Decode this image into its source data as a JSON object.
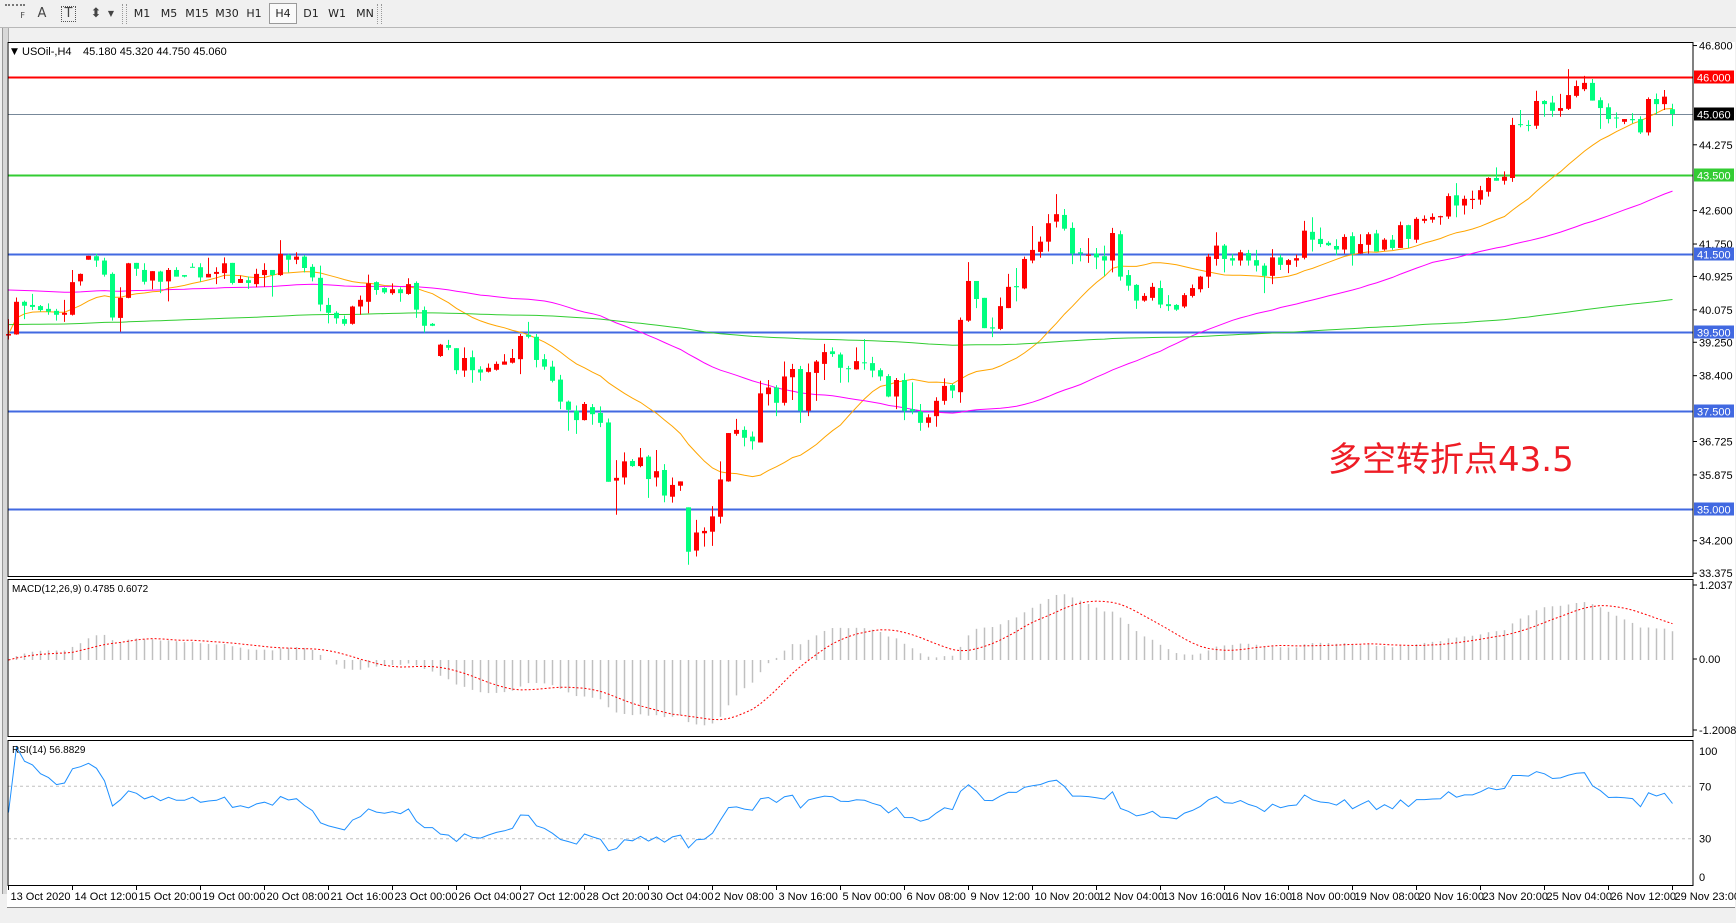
{
  "toolbar": {
    "tools": [
      {
        "name": "grid-properties-icon",
        "glyph": "F"
      },
      {
        "name": "text-tool-icon",
        "glyph": "A"
      },
      {
        "name": "text-label-tool-icon",
        "glyph": "T"
      },
      {
        "name": "arrows-tool-icon",
        "glyph": "⬍"
      }
    ],
    "timeframes": [
      "M1",
      "M5",
      "M15",
      "M30",
      "H1",
      "H4",
      "D1",
      "W1",
      "MN"
    ],
    "active_timeframe": "H4"
  },
  "header": {
    "symbol": "USOil-,H4",
    "ohlc": "45.180 45.320 44.750 45.060"
  },
  "price_axis": {
    "ticks": [
      "46.800",
      "44.275",
      "42.600",
      "41.750",
      "40.925",
      "40.075",
      "39.250",
      "38.400",
      "36.725",
      "35.875",
      "34.200",
      "33.375"
    ]
  },
  "levels": [
    {
      "label": "46.000",
      "price": 46.0,
      "color": "#ff0000",
      "kind": "resistance"
    },
    {
      "label": "45.060",
      "price": 45.06,
      "color": "#778899",
      "kind": "bid",
      "tag_color": "#000000"
    },
    {
      "label": "43.500",
      "price": 43.5,
      "color": "#33cc33",
      "kind": "pivot"
    },
    {
      "label": "41.500",
      "price": 41.5,
      "color": "#4169e1",
      "kind": "support"
    },
    {
      "label": "39.500",
      "price": 39.5,
      "color": "#4169e1",
      "kind": "support"
    },
    {
      "label": "37.500",
      "price": 37.5,
      "color": "#4169e1",
      "kind": "support"
    },
    {
      "label": "35.000",
      "price": 35.0,
      "color": "#4169e1",
      "kind": "support"
    }
  ],
  "annotation": {
    "text": "多空转折点43.5",
    "color": "#ee1c25"
  },
  "time_axis": [
    "13 Oct 2020",
    "14 Oct 12:00",
    "15 Oct 20:00",
    "19 Oct 00:00",
    "20 Oct 08:00",
    "21 Oct 16:00",
    "23 Oct 00:00",
    "26 Oct 04:00",
    "27 Oct 12:00",
    "28 Oct 20:00",
    "30 Oct 04:00",
    "2 Nov 08:00",
    "3 Nov 16:00",
    "5 Nov 00:00",
    "6 Nov 08:00",
    "9 Nov 12:00",
    "10 Nov 20:00",
    "12 Nov 04:00",
    "13 Nov 16:00",
    "16 Nov 16:00",
    "18 Nov 00:00",
    "19 Nov 08:00",
    "20 Nov 16:00",
    "23 Nov 20:00",
    "25 Nov 04:00",
    "26 Nov 12:00",
    "29 Nov 23:00"
  ],
  "macd": {
    "label": "MACD(12,26,9) 0.4785 0.6072",
    "axis": [
      "1.2037",
      "0.00",
      "-1.2008"
    ],
    "histogram_color": "#c0c0c0",
    "signal_color": "#ff0000"
  },
  "rsi": {
    "label": "RSI(14) 56.8829",
    "axis": [
      "100",
      "70",
      "30",
      "0"
    ],
    "levels": [
      70,
      30
    ],
    "line_color": "#1e90ff"
  },
  "colors": {
    "bull": "#ff0000",
    "bear": "#00ff7f",
    "ma_fast": "#ffa500",
    "ma_mid": "#ff00ff",
    "ma_slow": "#32cd32"
  },
  "chart_data": {
    "type": "candlestick",
    "symbol": "USOil-",
    "timeframe": "H4",
    "ylim": [
      33.375,
      46.8
    ],
    "candle_format": [
      "open",
      "high",
      "low",
      "close"
    ],
    "candles": [
      [
        39.42,
        39.84,
        39.32,
        39.46
      ],
      [
        39.45,
        40.39,
        39.44,
        40.28
      ],
      [
        40.28,
        40.31,
        39.84,
        40.18
      ],
      [
        40.2,
        40.48,
        40.07,
        40.15
      ],
      [
        40.17,
        40.2,
        40.03,
        40.07
      ],
      [
        40.1,
        40.24,
        39.95,
        40.03
      ],
      [
        40.05,
        40.1,
        39.8,
        39.95
      ],
      [
        39.95,
        40.33,
        39.77,
        40.0
      ],
      [
        39.95,
        41.09,
        39.93,
        40.78
      ],
      [
        40.8,
        41.0,
        40.69,
        40.99
      ],
      [
        41.35,
        41.45,
        41.35,
        41.45
      ],
      [
        41.44,
        41.5,
        41.17,
        41.33
      ],
      [
        41.33,
        41.4,
        40.92,
        40.97
      ],
      [
        40.99,
        41.03,
        39.8,
        39.88
      ],
      [
        39.87,
        40.65,
        39.52,
        40.38
      ],
      [
        40.38,
        41.27,
        40.37,
        41.26
      ],
      [
        41.27,
        41.27,
        40.94,
        41.12
      ],
      [
        41.09,
        41.26,
        40.72,
        40.79
      ],
      [
        40.82,
        41.06,
        40.6,
        41.06
      ],
      [
        41.05,
        41.07,
        40.5,
        40.79
      ],
      [
        40.8,
        41.14,
        40.29,
        41.09
      ],
      [
        41.09,
        41.16,
        40.92,
        40.92
      ],
      [
        40.96,
        40.96,
        40.9,
        40.92
      ],
      [
        41.17,
        41.26,
        41.16,
        41.16
      ],
      [
        41.16,
        41.26,
        40.79,
        40.9
      ],
      [
        40.9,
        41.4,
        40.9,
        40.99
      ],
      [
        40.99,
        41.16,
        40.73,
        41.04
      ],
      [
        41.01,
        41.41,
        40.86,
        41.26
      ],
      [
        41.27,
        41.27,
        40.72,
        40.76
      ],
      [
        40.76,
        40.95,
        40.76,
        40.86
      ],
      [
        40.83,
        40.92,
        40.61,
        40.76
      ],
      [
        40.73,
        41.12,
        40.65,
        40.99
      ],
      [
        40.96,
        41.26,
        40.66,
        41.09
      ],
      [
        41.09,
        41.09,
        40.41,
        40.96
      ],
      [
        40.96,
        41.85,
        40.94,
        41.5
      ],
      [
        41.47,
        41.5,
        41.03,
        41.35
      ],
      [
        41.35,
        41.54,
        41.24,
        41.43
      ],
      [
        41.43,
        41.47,
        41.03,
        41.14
      ],
      [
        41.17,
        41.24,
        40.8,
        40.9
      ],
      [
        40.89,
        41.2,
        40.04,
        40.21
      ],
      [
        40.2,
        40.38,
        39.73,
        40.0
      ],
      [
        40.0,
        40.04,
        39.72,
        39.86
      ],
      [
        39.84,
        39.93,
        39.67,
        39.72
      ],
      [
        39.72,
        40.18,
        39.7,
        40.16
      ],
      [
        40.16,
        40.44,
        39.95,
        40.33
      ],
      [
        40.28,
        40.97,
        39.99,
        40.75
      ],
      [
        40.78,
        40.8,
        40.46,
        40.58
      ],
      [
        40.63,
        40.65,
        40.48,
        40.52
      ],
      [
        40.5,
        40.75,
        40.46,
        40.6
      ],
      [
        40.6,
        40.65,
        40.28,
        40.5
      ],
      [
        40.48,
        40.88,
        40.46,
        40.73
      ],
      [
        40.76,
        40.8,
        39.87,
        40.08
      ],
      [
        40.07,
        40.16,
        39.5,
        39.67
      ],
      [
        39.72,
        39.74,
        39.66,
        39.67
      ],
      [
        38.9,
        39.21,
        38.88,
        39.19
      ],
      [
        39.18,
        39.31,
        39.05,
        39.11
      ],
      [
        39.1,
        39.1,
        38.44,
        38.54
      ],
      [
        38.53,
        39.12,
        38.37,
        38.85
      ],
      [
        38.87,
        39.04,
        38.22,
        38.54
      ],
      [
        38.56,
        38.64,
        38.27,
        38.48
      ],
      [
        38.5,
        38.71,
        38.48,
        38.6
      ],
      [
        38.55,
        38.76,
        38.53,
        38.7
      ],
      [
        38.68,
        38.95,
        38.68,
        38.76
      ],
      [
        38.73,
        39.08,
        38.71,
        38.85
      ],
      [
        38.82,
        39.46,
        38.44,
        39.41
      ],
      [
        39.44,
        39.77,
        39.35,
        39.39
      ],
      [
        39.39,
        39.46,
        38.61,
        38.8
      ],
      [
        38.82,
        38.95,
        38.55,
        38.63
      ],
      [
        38.63,
        38.78,
        38.23,
        38.27
      ],
      [
        38.3,
        38.42,
        37.55,
        37.74
      ],
      [
        37.74,
        37.77,
        37.0,
        37.53
      ],
      [
        37.51,
        37.64,
        36.92,
        37.27
      ],
      [
        37.27,
        37.73,
        37.26,
        37.68
      ],
      [
        37.6,
        37.68,
        37.15,
        37.42
      ],
      [
        37.45,
        37.62,
        37.09,
        37.2
      ],
      [
        37.21,
        37.31,
        35.7,
        35.7
      ],
      [
        35.73,
        36.25,
        34.86,
        35.8
      ],
      [
        35.81,
        36.45,
        35.63,
        36.22
      ],
      [
        36.23,
        36.28,
        36.08,
        36.1
      ],
      [
        36.1,
        36.56,
        36.07,
        36.32
      ],
      [
        36.34,
        36.38,
        35.29,
        35.77
      ],
      [
        35.81,
        36.51,
        35.58,
        35.97
      ],
      [
        36.0,
        36.15,
        35.18,
        35.35
      ],
      [
        35.32,
        35.81,
        35.17,
        35.62
      ],
      [
        35.6,
        35.71,
        35.47,
        35.71
      ],
      [
        35.05,
        35.05,
        33.59,
        33.92
      ],
      [
        33.95,
        34.73,
        33.8,
        34.41
      ],
      [
        34.39,
        34.54,
        34.05,
        34.45
      ],
      [
        34.43,
        35.08,
        34.07,
        34.82
      ],
      [
        34.81,
        36.22,
        34.64,
        35.76
      ],
      [
        35.71,
        36.94,
        35.7,
        36.94
      ],
      [
        36.92,
        37.3,
        36.87,
        37.02
      ],
      [
        37.02,
        37.11,
        36.6,
        36.82
      ],
      [
        36.85,
        36.98,
        36.52,
        36.73
      ],
      [
        36.7,
        38.27,
        36.7,
        37.95
      ],
      [
        37.93,
        38.29,
        37.64,
        38.1
      ],
      [
        38.1,
        38.16,
        37.37,
        37.71
      ],
      [
        37.71,
        38.76,
        37.64,
        38.38
      ],
      [
        38.36,
        38.7,
        37.78,
        38.57
      ],
      [
        38.57,
        38.65,
        37.2,
        37.51
      ],
      [
        37.51,
        38.71,
        37.37,
        38.49
      ],
      [
        38.47,
        38.8,
        37.76,
        38.76
      ],
      [
        38.7,
        39.21,
        38.29,
        39.0
      ],
      [
        39.02,
        39.12,
        38.88,
        38.95
      ],
      [
        38.94,
        38.99,
        38.22,
        38.6
      ],
      [
        38.59,
        38.65,
        38.23,
        38.58
      ],
      [
        38.56,
        39.12,
        38.55,
        38.77
      ],
      [
        38.74,
        39.33,
        38.55,
        38.73
      ],
      [
        38.72,
        38.88,
        38.36,
        38.53
      ],
      [
        38.54,
        38.59,
        38.27,
        38.38
      ],
      [
        38.39,
        38.44,
        37.85,
        37.87
      ],
      [
        37.87,
        38.34,
        37.55,
        38.29
      ],
      [
        38.29,
        38.46,
        37.27,
        37.51
      ],
      [
        37.55,
        38.23,
        37.42,
        37.5
      ],
      [
        37.49,
        37.68,
        37.0,
        37.2
      ],
      [
        37.2,
        37.42,
        37.08,
        37.34
      ],
      [
        37.37,
        37.85,
        37.1,
        37.76
      ],
      [
        37.76,
        38.33,
        37.66,
        38.14
      ],
      [
        38.16,
        38.19,
        37.83,
        38.02
      ],
      [
        37.98,
        39.88,
        37.71,
        39.82
      ],
      [
        39.8,
        41.29,
        39.77,
        40.81
      ],
      [
        40.81,
        40.81,
        40.12,
        40.35
      ],
      [
        40.38,
        40.38,
        39.61,
        39.61
      ],
      [
        39.63,
        39.88,
        39.38,
        39.6
      ],
      [
        39.59,
        40.39,
        39.56,
        40.17
      ],
      [
        40.12,
        40.99,
        40.12,
        40.66
      ],
      [
        40.68,
        41.14,
        40.29,
        40.65
      ],
      [
        40.62,
        41.43,
        40.6,
        41.37
      ],
      [
        41.33,
        42.21,
        41.26,
        41.6
      ],
      [
        41.55,
        41.94,
        41.4,
        41.81
      ],
      [
        41.81,
        42.51,
        41.56,
        42.28
      ],
      [
        42.32,
        43.02,
        42.17,
        42.51
      ],
      [
        42.49,
        42.64,
        42.09,
        42.14
      ],
      [
        42.16,
        42.3,
        41.24,
        41.51
      ],
      [
        41.54,
        41.65,
        41.31,
        41.51
      ],
      [
        41.45,
        41.9,
        41.27,
        41.48
      ],
      [
        41.51,
        41.65,
        41.11,
        41.41
      ],
      [
        41.44,
        41.71,
        40.94,
        41.33
      ],
      [
        41.33,
        42.16,
        41.03,
        42.03
      ],
      [
        42.0,
        42.09,
        40.82,
        40.92
      ],
      [
        40.96,
        41.09,
        40.56,
        40.69
      ],
      [
        40.71,
        40.73,
        40.1,
        40.31
      ],
      [
        40.31,
        40.5,
        40.28,
        40.43
      ],
      [
        40.38,
        40.76,
        40.31,
        40.66
      ],
      [
        40.63,
        40.82,
        40.12,
        40.21
      ],
      [
        40.22,
        40.45,
        40.05,
        40.17
      ],
      [
        40.2,
        40.22,
        40.05,
        40.08
      ],
      [
        40.16,
        40.5,
        40.12,
        40.45
      ],
      [
        40.43,
        40.72,
        40.39,
        40.63
      ],
      [
        40.6,
        40.94,
        40.52,
        40.92
      ],
      [
        40.92,
        41.5,
        40.63,
        41.43
      ],
      [
        41.37,
        42.05,
        41.2,
        41.71
      ],
      [
        41.71,
        41.75,
        41.03,
        41.37
      ],
      [
        41.39,
        41.5,
        41.2,
        41.33
      ],
      [
        41.33,
        41.6,
        41.2,
        41.54
      ],
      [
        41.52,
        41.6,
        41.2,
        41.33
      ],
      [
        41.34,
        41.6,
        41.05,
        41.2
      ],
      [
        41.2,
        41.26,
        40.5,
        40.94
      ],
      [
        40.94,
        41.62,
        40.73,
        41.41
      ],
      [
        41.41,
        41.48,
        41.09,
        41.22
      ],
      [
        41.22,
        41.37,
        41.01,
        41.34
      ],
      [
        41.33,
        41.48,
        41.17,
        41.39
      ],
      [
        41.4,
        42.34,
        41.36,
        42.09
      ],
      [
        42.06,
        42.43,
        41.56,
        41.86
      ],
      [
        41.88,
        42.17,
        41.67,
        41.75
      ],
      [
        41.78,
        41.82,
        41.7,
        41.72
      ],
      [
        41.7,
        41.87,
        41.46,
        41.61
      ],
      [
        41.61,
        42.0,
        41.51,
        41.93
      ],
      [
        41.95,
        42.05,
        41.2,
        41.51
      ],
      [
        41.51,
        42.0,
        41.5,
        41.75
      ],
      [
        41.73,
        42.05,
        41.51,
        42.0
      ],
      [
        42.02,
        42.11,
        41.56,
        41.56
      ],
      [
        41.61,
        41.9,
        41.58,
        41.86
      ],
      [
        41.86,
        41.98,
        41.6,
        41.65
      ],
      [
        41.65,
        42.32,
        41.65,
        42.23
      ],
      [
        42.23,
        42.24,
        41.65,
        41.88
      ],
      [
        41.86,
        42.43,
        41.78,
        42.39
      ],
      [
        42.34,
        42.48,
        42.28,
        42.39
      ],
      [
        42.37,
        42.53,
        42.29,
        42.44
      ],
      [
        42.43,
        42.47,
        42.24,
        42.46
      ],
      [
        42.45,
        43.04,
        42.39,
        42.97
      ],
      [
        42.99,
        43.3,
        42.43,
        42.73
      ],
      [
        42.73,
        42.98,
        42.5,
        42.9
      ],
      [
        42.87,
        43.11,
        42.64,
        42.9
      ],
      [
        42.88,
        43.23,
        42.75,
        43.12
      ],
      [
        43.08,
        43.45,
        42.96,
        43.43
      ],
      [
        43.43,
        43.7,
        43.36,
        43.36
      ],
      [
        43.36,
        43.6,
        43.26,
        43.46
      ],
      [
        43.43,
        44.96,
        43.33,
        44.78
      ],
      [
        44.8,
        45.16,
        44.72,
        44.78
      ],
      [
        44.78,
        44.9,
        44.62,
        44.76
      ],
      [
        44.76,
        45.65,
        44.68,
        45.39
      ],
      [
        45.39,
        45.41,
        44.99,
        45.31
      ],
      [
        45.35,
        45.52,
        44.99,
        45.14
      ],
      [
        45.14,
        45.57,
        44.99,
        45.21
      ],
      [
        45.19,
        46.2,
        45.16,
        45.54
      ],
      [
        45.52,
        45.91,
        45.48,
        45.77
      ],
      [
        45.69,
        46.03,
        45.64,
        45.85
      ],
      [
        45.85,
        45.95,
        45.4,
        45.4
      ],
      [
        45.41,
        45.48,
        44.68,
        45.21
      ],
      [
        45.23,
        45.33,
        44.82,
        44.93
      ],
      [
        44.97,
        45.1,
        44.7,
        44.95
      ],
      [
        44.86,
        44.93,
        44.8,
        44.93
      ],
      [
        44.93,
        45.08,
        44.82,
        44.9
      ],
      [
        44.93,
        45.0,
        44.55,
        44.59
      ],
      [
        44.59,
        45.48,
        44.51,
        45.44
      ],
      [
        45.44,
        45.58,
        45.06,
        45.31
      ],
      [
        45.31,
        45.67,
        45.16,
        45.5
      ],
      [
        45.18,
        45.32,
        44.75,
        45.06
      ]
    ]
  }
}
